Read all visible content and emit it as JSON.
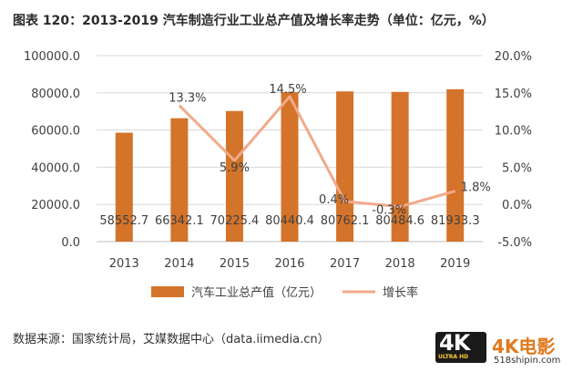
{
  "title": "图表 120：2013-2019 汽车制造行业工业总产值及增长率走势（单位：亿元，%）",
  "source": "数据来源：国家统计局，艾媒数据中心（data.iimedia.cn）",
  "watermark": {
    "logo": "4K",
    "logo_sub": "ULTRA HD",
    "name": "4K电影",
    "url": "518shipin.com"
  },
  "colors": {
    "bar": "#D4732A",
    "line": "#F2A98A",
    "grid": "#D9D9D9",
    "axis": "#BFBFBF"
  },
  "chart_data": {
    "type": "bar",
    "categories": [
      "2013",
      "2014",
      "2015",
      "2016",
      "2017",
      "2018",
      "2019"
    ],
    "series": [
      {
        "name": "汽车工业总产值（亿元）",
        "type": "bar",
        "axis": "left",
        "values": [
          58552.7,
          66342.1,
          70225.4,
          80440.4,
          80762.1,
          80484.6,
          81933.3
        ],
        "labels": [
          "58552.7",
          "66342.1",
          "70225.4",
          "80440.4",
          "80762.1",
          "80484.6",
          "81933.3"
        ]
      },
      {
        "name": "增长率",
        "type": "line",
        "axis": "right",
        "values": [
          null,
          13.3,
          5.9,
          14.5,
          0.4,
          -0.3,
          1.8
        ],
        "labels": [
          "",
          "13.3%",
          "5.9%",
          "14.5%",
          "0.4%",
          "-0.3%",
          "1.8%"
        ]
      }
    ],
    "y_left": {
      "ylim": [
        0,
        100000
      ],
      "ticks": [
        "0.0",
        "20000.0",
        "40000.0",
        "60000.0",
        "80000.0",
        "100000.0"
      ]
    },
    "y_right": {
      "ylim": [
        -5,
        20
      ],
      "ticks": [
        "-5.0%",
        "0.0%",
        "5.0%",
        "10.0%",
        "15.0%",
        "20.0%"
      ]
    },
    "grid": true,
    "legend_position": "bottom"
  }
}
